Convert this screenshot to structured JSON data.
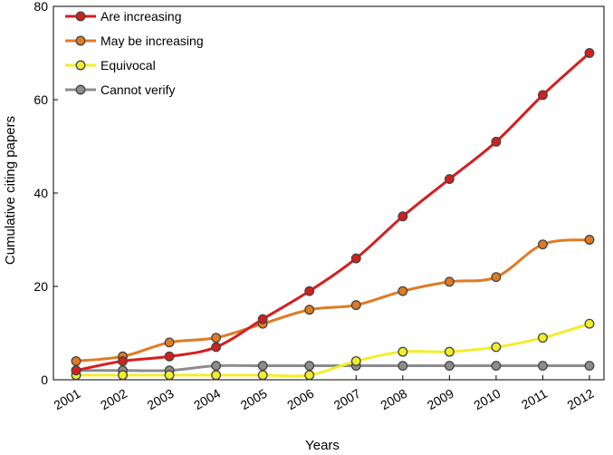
{
  "chart_data": {
    "type": "line",
    "xlabel": "Years",
    "ylabel": "Cumulative citing papers",
    "ylim": [
      0,
      80
    ],
    "yticks": [
      0,
      20,
      40,
      60,
      80
    ],
    "categories": [
      "2001",
      "2002",
      "2003",
      "2004",
      "2005",
      "2006",
      "2007",
      "2008",
      "2009",
      "2010",
      "2011",
      "2012"
    ],
    "grid": false,
    "legend_position": "top-left",
    "series": [
      {
        "name": "Are increasing",
        "color": "#d41f1f",
        "values": [
          2,
          4,
          5,
          7,
          13,
          19,
          26,
          35,
          43,
          51,
          61,
          70
        ]
      },
      {
        "name": "May be increasing",
        "color": "#e07b24",
        "values": [
          4,
          5,
          8,
          9,
          12,
          15,
          16,
          19,
          21,
          22,
          29,
          30
        ]
      },
      {
        "name": "Equivocal",
        "color": "#f2ee2a",
        "values": [
          1,
          1,
          1,
          1,
          1,
          1,
          4,
          6,
          6,
          7,
          9,
          12
        ]
      },
      {
        "name": "Cannot verify",
        "color": "#8c8c8c",
        "values": [
          2,
          2,
          2,
          3,
          3,
          3,
          3,
          3,
          3,
          3,
          3,
          3
        ]
      }
    ]
  }
}
